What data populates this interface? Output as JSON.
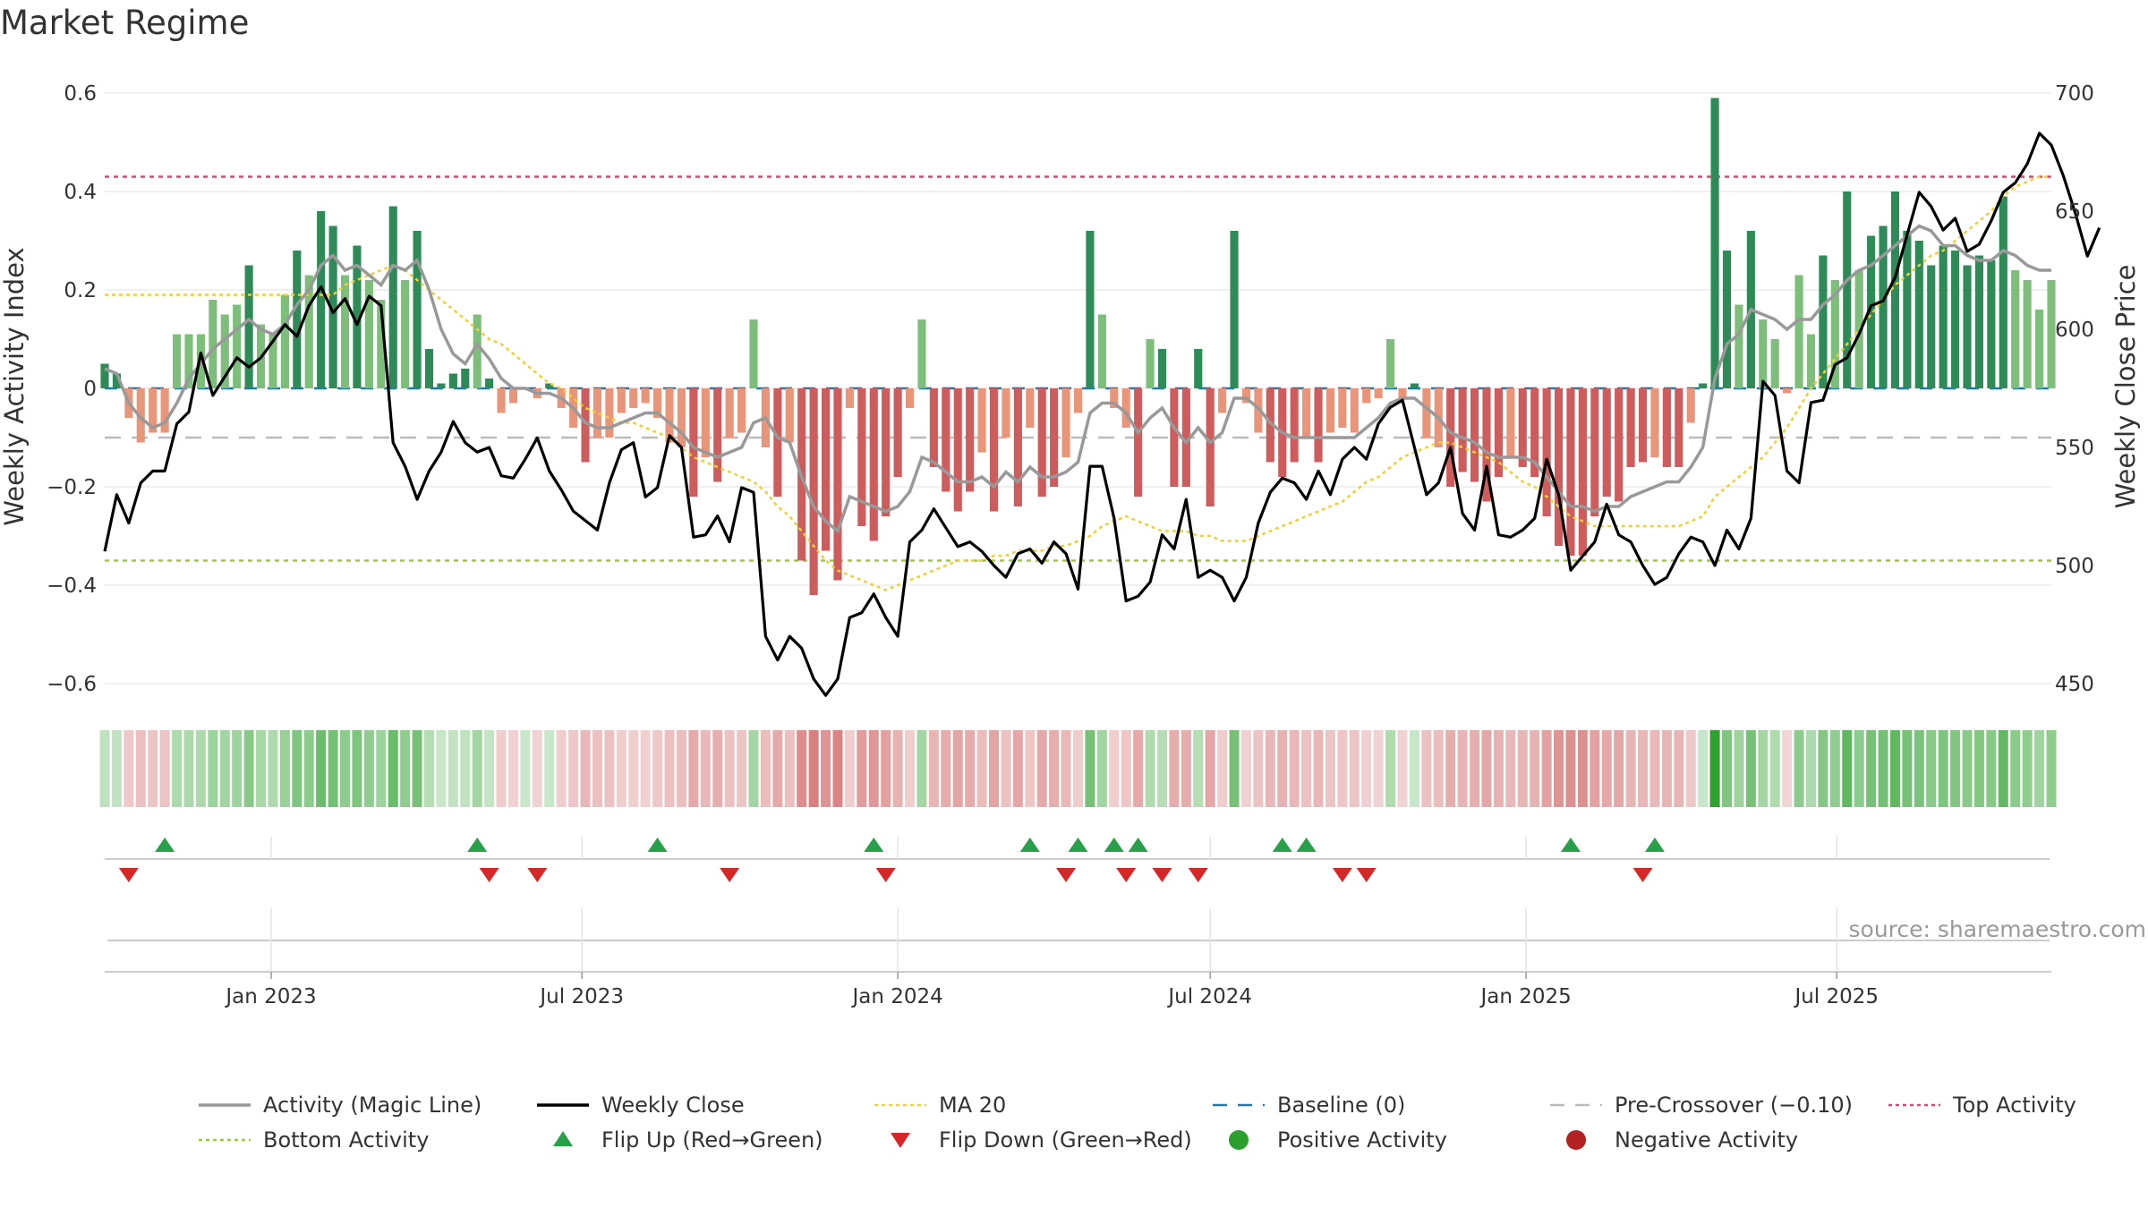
{
  "chart_data": {
    "type": "bar+line",
    "title": "Market Regime",
    "ylabel_left": "Weekly Activity Index",
    "ylabel_right": "Weekly Close Price",
    "ylim_left": [
      -0.6,
      0.6
    ],
    "ylim_right": [
      450,
      700
    ],
    "yticks_left": [
      "0.6",
      "0.4",
      "0.2",
      "0",
      "−0.2",
      "−0.4",
      "−0.6"
    ],
    "yticks_right": [
      "700",
      "650",
      "600",
      "550",
      "500",
      "450"
    ],
    "x_start": "2022-09-26",
    "week_step_days": 7,
    "x_ticks": [
      {
        "label": "Jan 2023",
        "date": "2023-01-01"
      },
      {
        "label": "Jul 2023",
        "date": "2023-07-01"
      },
      {
        "label": "Jan 2024",
        "date": "2024-01-01"
      },
      {
        "label": "Jul 2024",
        "date": "2024-07-01"
      },
      {
        "label": "Jan 2025",
        "date": "2025-01-01"
      },
      {
        "label": "Jul 2025",
        "date": "2025-07-01"
      }
    ],
    "activity": [
      0.05,
      0.03,
      -0.06,
      -0.11,
      -0.09,
      -0.09,
      0.11,
      0.11,
      0.11,
      0.18,
      0.15,
      0.17,
      0.25,
      0.13,
      0.11,
      0.19,
      0.28,
      0.23,
      0.36,
      0.33,
      0.23,
      0.29,
      0.22,
      0.18,
      0.37,
      0.22,
      0.32,
      0.08,
      0.01,
      0.03,
      0.04,
      0.15,
      0.02,
      -0.05,
      -0.03,
      0.0,
      -0.02,
      0.01,
      -0.04,
      -0.08,
      -0.15,
      -0.1,
      -0.1,
      -0.05,
      -0.04,
      -0.03,
      -0.06,
      -0.11,
      -0.12,
      -0.22,
      -0.14,
      -0.19,
      -0.1,
      -0.09,
      0.14,
      -0.12,
      -0.22,
      -0.11,
      -0.35,
      -0.42,
      -0.33,
      -0.39,
      -0.04,
      -0.28,
      -0.31,
      -0.26,
      -0.18,
      -0.04,
      0.14,
      -0.16,
      -0.21,
      -0.25,
      -0.21,
      -0.13,
      -0.25,
      -0.1,
      -0.24,
      -0.08,
      -0.22,
      -0.2,
      -0.14,
      -0.05,
      0.32,
      0.15,
      -0.04,
      -0.08,
      -0.22,
      0.1,
      0.08,
      -0.2,
      -0.2,
      0.08,
      -0.24,
      -0.05,
      0.32,
      -0.03,
      -0.09,
      -0.15,
      -0.18,
      -0.15,
      -0.1,
      -0.15,
      -0.09,
      -0.08,
      -0.09,
      -0.03,
      -0.02,
      0.1,
      -0.02,
      0.01,
      -0.1,
      -0.12,
      -0.2,
      -0.17,
      -0.19,
      -0.23,
      -0.18,
      -0.14,
      -0.16,
      -0.18,
      -0.26,
      -0.32,
      -0.34,
      -0.34,
      -0.26,
      -0.22,
      -0.23,
      -0.16,
      -0.15,
      -0.14,
      -0.16,
      -0.16,
      -0.07,
      0.01,
      0.59,
      0.28,
      0.17,
      0.32,
      0.14,
      0.1,
      -0.01,
      0.23,
      0.11,
      0.27,
      0.22,
      0.4,
      0.24,
      0.31,
      0.33,
      0.4,
      0.32,
      0.3,
      0.25,
      0.29,
      0.28,
      0.25,
      0.27,
      0.26,
      0.39,
      0.24,
      0.22,
      0.16,
      0.22
    ],
    "magic_line": [
      0.04,
      0.03,
      -0.03,
      -0.06,
      -0.08,
      -0.07,
      -0.03,
      0.02,
      0.05,
      0.08,
      0.1,
      0.12,
      0.14,
      0.12,
      0.11,
      0.13,
      0.17,
      0.2,
      0.25,
      0.27,
      0.24,
      0.25,
      0.23,
      0.21,
      0.25,
      0.24,
      0.26,
      0.2,
      0.12,
      0.07,
      0.05,
      0.09,
      0.06,
      0.02,
      0.0,
      0.0,
      -0.01,
      -0.01,
      -0.02,
      -0.04,
      -0.07,
      -0.08,
      -0.08,
      -0.07,
      -0.06,
      -0.05,
      -0.05,
      -0.07,
      -0.09,
      -0.12,
      -0.13,
      -0.14,
      -0.13,
      -0.12,
      -0.07,
      -0.06,
      -0.1,
      -0.11,
      -0.18,
      -0.24,
      -0.27,
      -0.29,
      -0.22,
      -0.23,
      -0.24,
      -0.25,
      -0.24,
      -0.21,
      -0.14,
      -0.15,
      -0.17,
      -0.19,
      -0.19,
      -0.18,
      -0.2,
      -0.17,
      -0.19,
      -0.16,
      -0.18,
      -0.18,
      -0.17,
      -0.15,
      -0.05,
      -0.03,
      -0.03,
      -0.05,
      -0.09,
      -0.06,
      -0.04,
      -0.08,
      -0.11,
      -0.08,
      -0.11,
      -0.09,
      -0.02,
      -0.02,
      -0.04,
      -0.07,
      -0.09,
      -0.1,
      -0.1,
      -0.1,
      -0.1,
      -0.1,
      -0.1,
      -0.08,
      -0.06,
      -0.03,
      -0.02,
      -0.02,
      -0.04,
      -0.06,
      -0.09,
      -0.1,
      -0.11,
      -0.13,
      -0.14,
      -0.14,
      -0.14,
      -0.15,
      -0.18,
      -0.21,
      -0.24,
      -0.24,
      -0.25,
      -0.24,
      -0.24,
      -0.22,
      -0.21,
      -0.2,
      -0.19,
      -0.19,
      -0.16,
      -0.12,
      0.02,
      0.09,
      0.11,
      0.16,
      0.15,
      0.14,
      0.12,
      0.14,
      0.14,
      0.17,
      0.19,
      0.22,
      0.24,
      0.25,
      0.27,
      0.29,
      0.31,
      0.33,
      0.32,
      0.29,
      0.29,
      0.27,
      0.26,
      0.26,
      0.28,
      0.27,
      0.25,
      0.24,
      0.24
    ],
    "ma20": [
      0.19,
      0.19,
      0.19,
      0.19,
      0.19,
      0.19,
      0.19,
      0.19,
      0.19,
      0.19,
      0.19,
      0.19,
      0.19,
      0.19,
      0.19,
      0.19,
      0.19,
      0.19,
      0.19,
      0.19,
      0.21,
      0.22,
      0.23,
      0.24,
      0.25,
      0.24,
      0.22,
      0.2,
      0.18,
      0.16,
      0.14,
      0.12,
      0.1,
      0.09,
      0.07,
      0.05,
      0.03,
      0.01,
      0.0,
      -0.02,
      -0.04,
      -0.05,
      -0.06,
      -0.07,
      -0.07,
      -0.08,
      -0.09,
      -0.1,
      -0.12,
      -0.14,
      -0.15,
      -0.16,
      -0.17,
      -0.18,
      -0.19,
      -0.21,
      -0.24,
      -0.26,
      -0.29,
      -0.32,
      -0.35,
      -0.37,
      -0.38,
      -0.39,
      -0.4,
      -0.41,
      -0.4,
      -0.39,
      -0.38,
      -0.37,
      -0.36,
      -0.35,
      -0.35,
      -0.35,
      -0.34,
      -0.34,
      -0.33,
      -0.33,
      -0.33,
      -0.32,
      -0.32,
      -0.31,
      -0.3,
      -0.28,
      -0.27,
      -0.26,
      -0.27,
      -0.28,
      -0.29,
      -0.29,
      -0.29,
      -0.3,
      -0.3,
      -0.31,
      -0.31,
      -0.31,
      -0.3,
      -0.29,
      -0.28,
      -0.27,
      -0.26,
      -0.25,
      -0.24,
      -0.23,
      -0.21,
      -0.19,
      -0.18,
      -0.16,
      -0.14,
      -0.13,
      -0.12,
      -0.11,
      -0.11,
      -0.12,
      -0.13,
      -0.14,
      -0.15,
      -0.17,
      -0.19,
      -0.2,
      -0.22,
      -0.24,
      -0.26,
      -0.27,
      -0.28,
      -0.28,
      -0.28,
      -0.28,
      -0.28,
      -0.28,
      -0.28,
      -0.28,
      -0.27,
      -0.26,
      -0.22,
      -0.2,
      -0.18,
      -0.16,
      -0.14,
      -0.11,
      -0.08,
      -0.04,
      0.0,
      0.03,
      0.06,
      0.09,
      0.12,
      0.15,
      0.18,
      0.21,
      0.23,
      0.25,
      0.27,
      0.28,
      0.3,
      0.32,
      0.34,
      0.36,
      0.39,
      0.41,
      0.42,
      0.43,
      0.43
    ],
    "weekly_close": [
      506,
      530,
      518,
      535,
      540,
      540,
      560,
      565,
      590,
      572,
      580,
      588,
      584,
      588,
      595,
      602,
      597,
      610,
      618,
      607,
      613,
      602,
      614,
      610,
      552,
      542,
      528,
      540,
      548,
      561,
      552,
      548,
      550,
      538,
      537,
      545,
      554,
      540,
      532,
      523,
      519,
      515,
      535,
      549,
      552,
      529,
      533,
      555,
      550,
      512,
      513,
      521,
      510,
      533,
      531,
      470,
      460,
      470,
      465,
      452,
      445,
      452,
      478,
      480,
      488,
      478,
      470,
      510,
      515,
      524,
      516,
      508,
      510,
      506,
      500,
      495,
      505,
      507,
      501,
      510,
      505,
      490,
      542,
      542,
      520,
      485,
      487,
      493,
      513,
      507,
      528,
      495,
      498,
      495,
      485,
      495,
      518,
      531,
      537,
      535,
      528,
      540,
      530,
      545,
      550,
      545,
      560,
      567,
      570,
      550,
      530,
      535,
      550,
      522,
      515,
      542,
      513,
      512,
      515,
      520,
      545,
      530,
      498,
      504,
      510,
      526,
      513,
      510,
      500,
      492,
      495,
      505,
      512,
      510,
      500,
      515,
      507,
      520,
      578,
      572,
      540,
      535,
      569,
      570,
      585,
      588,
      598,
      610,
      612,
      622,
      640,
      658,
      652,
      642,
      647,
      633,
      636,
      646,
      658,
      662,
      670,
      683,
      678,
      665,
      649,
      631,
      643
    ]
  },
  "signals": {
    "flip_up_weeks": [
      5,
      31,
      46,
      64,
      77,
      81,
      84,
      86,
      98,
      100,
      122,
      129
    ],
    "flip_down_weeks": [
      2,
      32,
      36,
      52,
      65,
      80,
      85,
      88,
      91,
      103,
      105,
      128
    ]
  },
  "colors": {
    "strong_positive": "#2e8b57",
    "mild_positive": "#7cbe7a",
    "strong_negative": "#cd5c5c",
    "mild_negative": "#e8957a",
    "magic_line": "#999999",
    "weekly_close": "#000000",
    "ma20": "#f0d030",
    "baseline": "#1f77b4",
    "pre_crossover": "#bbbbbb",
    "top_activity": "#d9486c",
    "bottom_activity": "#9acd32",
    "flip_up": "#27a049",
    "flip_down": "#d62728",
    "positive_dot": "#2ca02c",
    "negative_dot": "#b22222"
  },
  "ref_lines": {
    "top_activity": 0.43,
    "bottom_activity": -0.35,
    "pre_crossover": -0.1,
    "baseline": 0
  },
  "legend": [
    {
      "label": "Activity (Magic Line)",
      "style": "line",
      "color_key": "magic_line"
    },
    {
      "label": "Weekly Close",
      "style": "line",
      "color_key": "weekly_close"
    },
    {
      "label": "MA 20",
      "style": "dotted",
      "color_key": "ma20"
    },
    {
      "label": "Baseline (0)",
      "style": "dashed",
      "color_key": "baseline"
    },
    {
      "label": "Pre-Crossover (−0.10)",
      "style": "dashed",
      "color_key": "pre_crossover"
    },
    {
      "label": "Top Activity",
      "style": "dotted",
      "color_key": "top_activity"
    },
    {
      "label": "Bottom Activity",
      "style": "dotted",
      "color_key": "bottom_activity"
    },
    {
      "label": "Flip Up (Red→Green)",
      "style": "triangle-up",
      "color_key": "flip_up"
    },
    {
      "label": "Flip Down (Green→Red)",
      "style": "triangle-down",
      "color_key": "flip_down"
    },
    {
      "label": "Positive Activity",
      "style": "dot",
      "color_key": "positive_dot"
    },
    {
      "label": "Negative Activity",
      "style": "dot",
      "color_key": "negative_dot"
    }
  ],
  "source": "source: sharemaestro.com"
}
